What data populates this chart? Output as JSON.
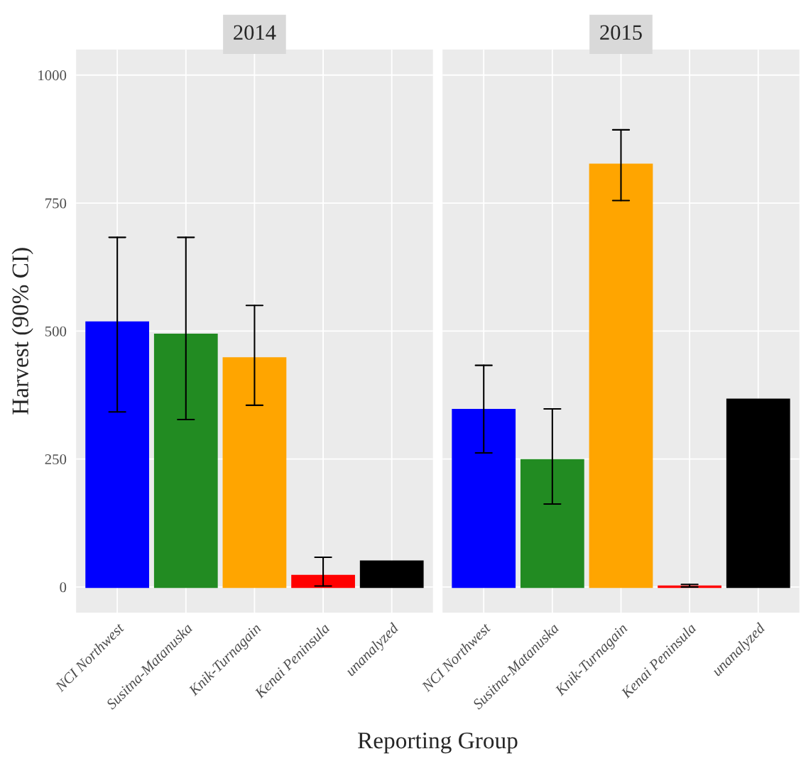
{
  "chart_data": [
    {
      "type": "bar",
      "title": "2014",
      "ylabel": "Harvest (90% CI)",
      "xlabel": "Reporting Group",
      "categories": [
        "NCI Northwest",
        "Susitna-Matanuska",
        "Knik-Turnagain",
        "Kenai Peninsula",
        "unanalyzed"
      ],
      "values": [
        517,
        493,
        447,
        22,
        50
      ],
      "colors": [
        "#0000ff",
        "#228b22",
        "#ffa500",
        "#ff0000",
        "#000000"
      ],
      "errors": [
        [
          342,
          683
        ],
        [
          327,
          683
        ],
        [
          355,
          550
        ],
        [
          2,
          58
        ],
        [
          0,
          0
        ]
      ],
      "ylim": [
        -50,
        1050
      ],
      "yticks": [
        0,
        250,
        500,
        750,
        1000
      ],
      "grid": true
    },
    {
      "type": "bar",
      "title": "2015",
      "categories": [
        "NCI Northwest",
        "Susitna-Matanuska",
        "Knik-Turnagain",
        "Kenai Peninsula",
        "unanalyzed"
      ],
      "values": [
        346,
        248,
        825,
        1,
        366
      ],
      "colors": [
        "#0000ff",
        "#228b22",
        "#ffa500",
        "#ff0000",
        "#000000"
      ],
      "errors": [
        [
          262,
          433
        ],
        [
          162,
          348
        ],
        [
          755,
          893
        ],
        [
          0,
          5
        ],
        [
          0,
          0
        ]
      ],
      "ylim": [
        -50,
        1050
      ],
      "yticks": [
        0,
        250,
        500,
        750,
        1000
      ],
      "grid": true,
      "tick_labels": "x"
    }
  ]
}
